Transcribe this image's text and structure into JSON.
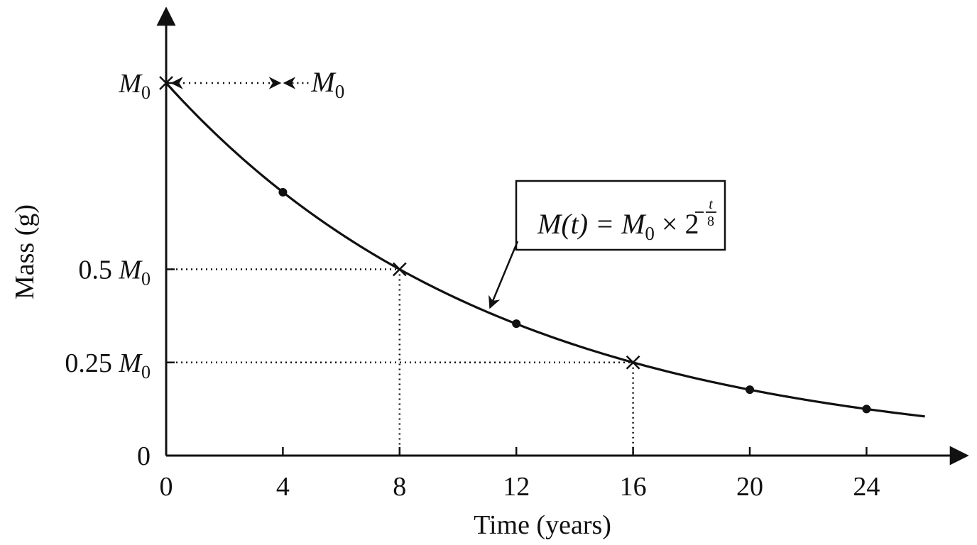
{
  "chart_data": {
    "type": "line",
    "xlabel": "Time (years)",
    "ylabel": "Mass (g)",
    "xlim": [
      0,
      26.5
    ],
    "ylim": [
      0,
      1
    ],
    "x_ticks": [
      0,
      4,
      8,
      12,
      16,
      20,
      24
    ],
    "x_tick_labels": [
      "0",
      "4",
      "8",
      "12",
      "16",
      "20",
      "24"
    ],
    "y_ticks": [
      {
        "value": 1,
        "coef": "",
        "sym": "M",
        "sub": "0"
      },
      {
        "value": 0.5,
        "coef": "0.5",
        "sym": "M",
        "sub": "0"
      },
      {
        "value": 0.25,
        "coef": "0.25",
        "sym": "M",
        "sub": "0"
      },
      {
        "value": 0,
        "coef": "0",
        "sym": "",
        "sub": ""
      }
    ],
    "function": {
      "half_life": 8,
      "x_start": 0,
      "x_end": 26,
      "unit": "M0"
    },
    "dot_points": [
      {
        "x": 4,
        "y": 0.707
      },
      {
        "x": 12,
        "y": 0.354
      },
      {
        "x": 20,
        "y": 0.177
      },
      {
        "x": 24,
        "y": 0.125
      }
    ],
    "cross_points": [
      {
        "x": 0,
        "y": 1
      },
      {
        "x": 8,
        "y": 0.5
      },
      {
        "x": 16,
        "y": 0.25
      }
    ],
    "guides": [
      {
        "x": 8,
        "y": 0.5
      },
      {
        "x": 16,
        "y": 0.25
      }
    ],
    "top_annotation": {
      "sym": "M",
      "sub": "0",
      "x_from": 0,
      "x_to": 5
    },
    "formula_box": {
      "lhs": "M(t) = ",
      "sym": "M",
      "sub": "0",
      "times": " × 2",
      "exp_sign": "−",
      "exp_num": "t",
      "exp_den": "8",
      "arrow_to_x": 11
    }
  }
}
